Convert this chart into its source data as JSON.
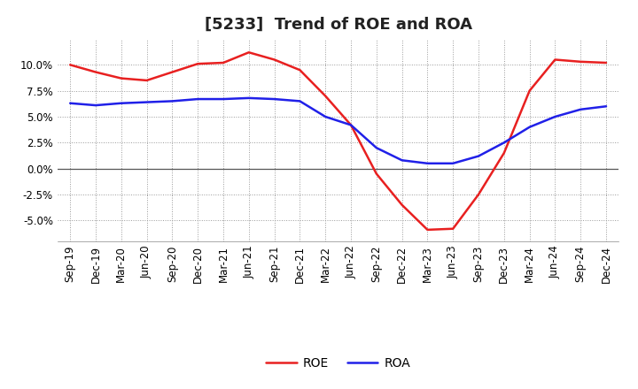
{
  "title": "[5233]  Trend of ROE and ROA",
  "x_labels": [
    "Sep-19",
    "Dec-19",
    "Mar-20",
    "Jun-20",
    "Sep-20",
    "Dec-20",
    "Mar-21",
    "Jun-21",
    "Sep-21",
    "Dec-21",
    "Mar-22",
    "Jun-22",
    "Sep-22",
    "Dec-22",
    "Mar-23",
    "Jun-23",
    "Sep-23",
    "Dec-23",
    "Mar-24",
    "Jun-24",
    "Sep-24",
    "Dec-24"
  ],
  "roe": [
    10.0,
    9.3,
    8.7,
    8.5,
    9.3,
    10.1,
    10.2,
    11.2,
    10.5,
    9.5,
    7.0,
    4.2,
    -0.5,
    -3.5,
    -5.9,
    -5.8,
    -2.5,
    1.5,
    7.5,
    10.5,
    10.3,
    10.2
  ],
  "roa": [
    6.3,
    6.1,
    6.3,
    6.4,
    6.5,
    6.7,
    6.7,
    6.8,
    6.7,
    6.5,
    5.0,
    4.2,
    2.0,
    0.8,
    0.5,
    0.5,
    1.2,
    2.5,
    4.0,
    5.0,
    5.7,
    6.0
  ],
  "roe_color": "#e82020",
  "roa_color": "#2020e8",
  "ylim": [
    -7.0,
    12.5
  ],
  "yticks": [
    -5.0,
    -2.5,
    0.0,
    2.5,
    5.0,
    7.5,
    10.0
  ],
  "background_color": "#ffffff",
  "grid_color": "#999999",
  "line_width": 1.8,
  "title_fontsize": 13,
  "tick_fontsize": 8.5,
  "legend_fontsize": 10
}
